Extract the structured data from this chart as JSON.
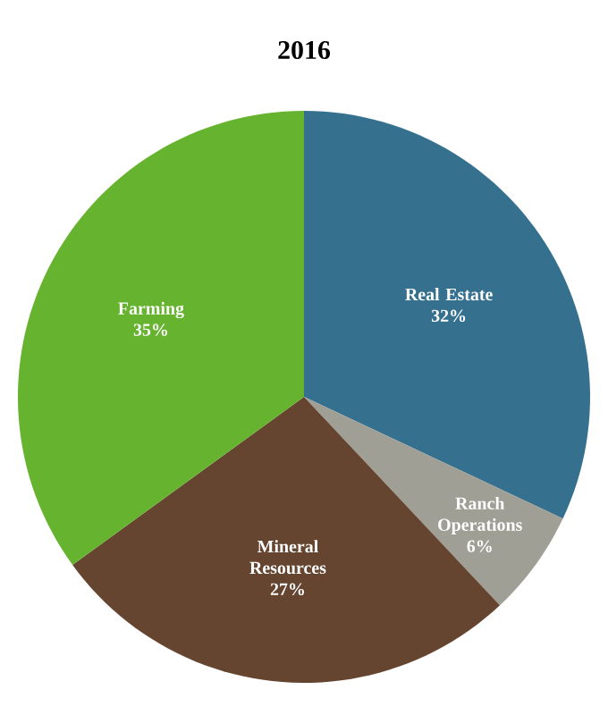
{
  "chart_data": {
    "type": "pie",
    "title": "2016",
    "categories": [
      "Real Estate",
      "Ranch Operations",
      "Mineral Resources",
      "Farming"
    ],
    "values": [
      32,
      6,
      27,
      35
    ],
    "colors": [
      "#35718f",
      "#a09f96",
      "#654530",
      "#65b32e"
    ],
    "value_labels": [
      "32%",
      "6%",
      "27%",
      "35%"
    ]
  }
}
